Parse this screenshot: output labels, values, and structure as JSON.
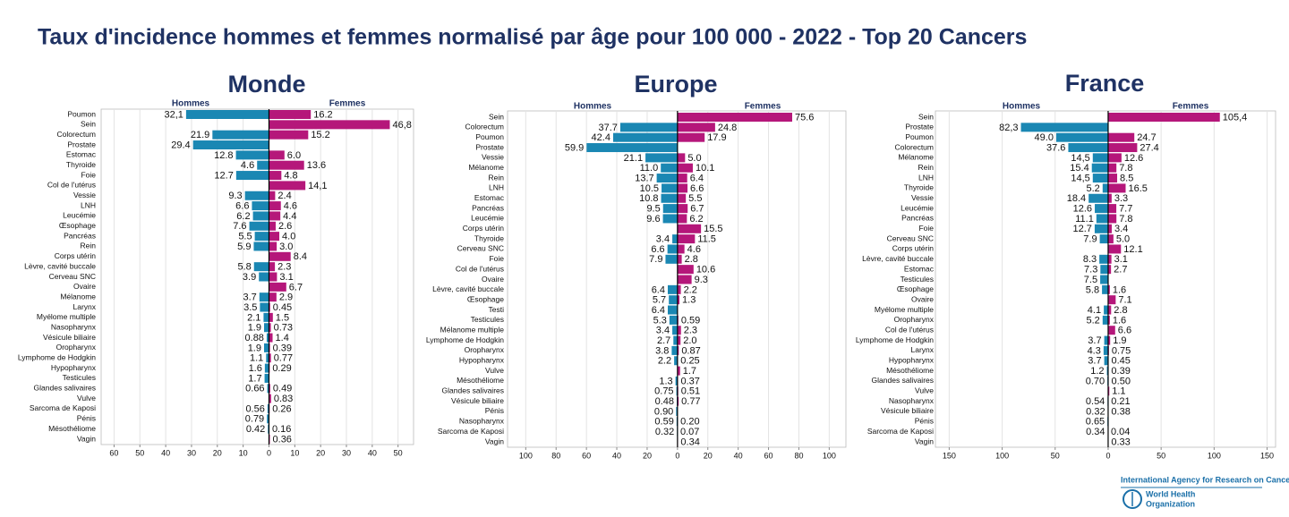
{
  "title": "Taux d'incidence hommes et femmes normalisé par âge pour 100 000 - 2022 - Top 20 Cancers",
  "footer": {
    "agency": "International Agency for Research on Cancer",
    "who_line1": "World Health",
    "who_line2": "Organization"
  },
  "chart_data": [
    {
      "type": "butterfly",
      "title": "Monde",
      "categories": [
        "Poumon",
        "Sein",
        "Colorectum",
        "Prostate",
        "Estomac",
        "Thyroide",
        "Foie",
        "Col de l'utérus",
        "Vessie",
        "LNH",
        "Leucémie",
        "Œsophage",
        "Pancréas",
        "Rein",
        "Corps utérin",
        "Lèvre, cavité buccale",
        "Cerveau SNC",
        "Ovaire",
        "Mélanome",
        "Larynx",
        "Myélome multiple",
        "Nasopharynx",
        "Vésicule biliaire",
        "Oropharynx",
        "Lymphome de Hodgkin",
        "Hypopharynx",
        "Testicules",
        "Glandes salivaires",
        "Vulve",
        "Sarcoma de Kaposi",
        "Pénis",
        "Mésothéliome",
        "Vagin"
      ],
      "series": [
        {
          "name": "Hommes",
          "color": "#1a87b3",
          "side": "left",
          "values": [
            32.1,
            null,
            21.9,
            29.4,
            12.8,
            4.6,
            12.7,
            null,
            9.3,
            6.6,
            6.2,
            7.6,
            5.5,
            5.9,
            null,
            5.8,
            3.9,
            null,
            3.7,
            3.5,
            2.1,
            1.9,
            0.88,
            1.9,
            1.1,
            1.6,
            1.7,
            0.66,
            null,
            0.56,
            0.79,
            0.42,
            null
          ],
          "value_labels": [
            "32,1",
            null,
            "21.9",
            "29.4",
            "12.8",
            "4.6",
            "12.7",
            null,
            "9.3",
            "6.6",
            "6.2",
            "7.6",
            "5.5",
            "5.9",
            null,
            "5.8",
            "3.9",
            null,
            "3.7",
            "3.5",
            "2.1",
            "1.9",
            "0.88",
            "1.9",
            "1.1",
            "1.6",
            "1.7",
            "0.66",
            null,
            "0.56",
            "0.79",
            "0.42",
            null
          ]
        },
        {
          "name": "Femmes",
          "color": "#b5177a",
          "side": "right",
          "values": [
            16.2,
            46.8,
            15.2,
            null,
            6.0,
            13.6,
            4.8,
            14.1,
            2.4,
            4.6,
            4.4,
            2.6,
            4.0,
            3.0,
            8.4,
            2.3,
            3.1,
            6.7,
            2.9,
            0.45,
            1.5,
            0.73,
            1.4,
            0.39,
            0.77,
            0.29,
            null,
            0.49,
            0.83,
            0.26,
            null,
            0.16,
            0.36
          ],
          "value_labels": [
            "16.2",
            "46,8",
            "15.2",
            null,
            "6.0",
            "13.6",
            "4.8",
            "14,1",
            "2.4",
            "4.6",
            "4.4",
            "2.6",
            "4.0",
            "3.0",
            "8.4",
            "2.3",
            "3.1",
            "6.7",
            "2.9",
            "0.45",
            "1.5",
            "0.73",
            "1.4",
            "0.39",
            "0.77",
            "0.29",
            null,
            "0.49",
            "0.83",
            "0.26",
            null,
            "0.16",
            "0.36"
          ]
        }
      ],
      "xlim": [
        -65,
        56
      ],
      "xticks": [
        {
          "value": -60,
          "label": "60"
        },
        {
          "value": -50,
          "label": "50"
        },
        {
          "value": -40,
          "label": "40"
        },
        {
          "value": -30,
          "label": "30"
        },
        {
          "value": -20,
          "label": "20"
        },
        {
          "value": -10,
          "label": "10"
        },
        0,
        10,
        20,
        30,
        40,
        50
      ],
      "grid": true
    },
    {
      "type": "butterfly",
      "title": "Europe",
      "categories": [
        "Sein",
        "Colorectum",
        "Poumon",
        "Prostate",
        "Vessie",
        "Mélanome",
        "Rein",
        "LNH",
        "Estomac",
        "Pancréas",
        "Leucémie",
        "Corps utérin",
        "Thyroide",
        "Cerveau SNC",
        "Foie",
        "Col de l'utérus",
        "Ovaire",
        "Lèvre, cavité buccale",
        "Œsophage",
        "Testi",
        "Testicules",
        "Mélanome multiple",
        "Lymphome de Hodgkin",
        "Oropharynx",
        "Hypopharynx",
        "Vulve",
        "Mésothéliome",
        "Glandes salivaires",
        "Vésicule biliaire",
        "Pénis",
        "Nasopharynx",
        "Sarcoma de Kaposi",
        "Vagin"
      ],
      "series": [
        {
          "name": "Hommes",
          "color": "#1a87b3",
          "side": "left",
          "values": [
            null,
            37.7,
            42.4,
            59.9,
            21.1,
            11.0,
            13.7,
            10.5,
            10.8,
            9.5,
            9.6,
            null,
            3.4,
            6.6,
            7.9,
            null,
            null,
            6.4,
            5.7,
            6.4,
            5.3,
            3.4,
            2.7,
            3.8,
            2.2,
            null,
            1.3,
            0.75,
            0.48,
            0.9,
            0.59,
            0.32,
            null
          ],
          "value_labels": [
            null,
            "37.7",
            "42.4",
            "59.9",
            "21.1",
            "11.0",
            "13.7",
            "10.5",
            "10.8",
            "9.5",
            "9.6",
            null,
            "3.4",
            "6.6",
            "7.9",
            null,
            null,
            "6.4",
            "5.7",
            "6.4",
            "5.3",
            "3.4",
            "2.7",
            "3.8",
            "2.2",
            null,
            "1.3",
            "0.75",
            "0.48",
            "0.90",
            "0.59",
            "0.32",
            null
          ]
        },
        {
          "name": "Femmes",
          "color": "#b5177a",
          "side": "right",
          "values": [
            75.6,
            24.8,
            17.9,
            null,
            5.0,
            10.1,
            6.4,
            6.6,
            5.5,
            6.7,
            6.2,
            15.5,
            11.5,
            4.6,
            2.8,
            10.6,
            9.3,
            2.2,
            1.3,
            null,
            0.59,
            2.3,
            2.0,
            0.87,
            0.25,
            1.7,
            0.37,
            0.51,
            0.77,
            null,
            0.2,
            0.07,
            0.34
          ],
          "value_labels": [
            "75.6",
            "24.8",
            "17.9",
            null,
            "5.0",
            "10.1",
            "6.4",
            "6.6",
            "5.5",
            "6.7",
            "6.2",
            "15.5",
            "11.5",
            "4.6",
            "2.8",
            "10.6",
            "9.3",
            "2.2",
            "1.3",
            null,
            "0.59",
            "2.3",
            "2.0",
            "0.87",
            "0.25",
            "1.7",
            "0.37",
            "0.51",
            "0.77",
            null,
            "0.20",
            "0.07",
            "0.34"
          ]
        }
      ],
      "xlim": [
        -112,
        111
      ],
      "xticks": [
        {
          "value": -100,
          "label": "100"
        },
        {
          "value": -80,
          "label": "80"
        },
        {
          "value": -60,
          "label": "60"
        },
        {
          "value": -40,
          "label": "40"
        },
        {
          "value": -20,
          "label": "20"
        },
        0,
        20,
        40,
        60,
        80,
        100
      ],
      "grid": true
    },
    {
      "type": "butterfly",
      "title": "France",
      "categories": [
        "Sein",
        "Prostate",
        "Poumon",
        "Colorectum",
        "Mélanome",
        "Rein",
        "LNH",
        "Thyroide",
        "Vessie",
        "Leucémie",
        "Pancréas",
        "Foie",
        "Cerveau SNC",
        "Corps utérin",
        "Lèvre, cavité buccale",
        "Estomac",
        "Testicules",
        "Œsophage",
        "Ovaire",
        "Myélome multiple",
        "Oropharynx",
        "Col de l'utérus",
        "Lymphome de Hodgkin",
        "Larynx",
        "Hypopharynx",
        "Mésothéliome",
        "Glandes salivaires",
        "Vulve",
        "Nasopharynx",
        "Vésicule biliaire",
        "Pénis",
        "Sarcoma de Kaposi",
        "Vagin"
      ],
      "series": [
        {
          "name": "Hommes",
          "color": "#1a87b3",
          "side": "left",
          "values": [
            null,
            82.3,
            49.0,
            37.6,
            14.5,
            15.4,
            14.5,
            5.2,
            18.4,
            12.6,
            11.1,
            12.7,
            7.9,
            null,
            8.3,
            7.3,
            7.5,
            5.8,
            null,
            4.1,
            5.2,
            null,
            3.7,
            4.3,
            3.7,
            1.2,
            0.7,
            null,
            0.54,
            0.32,
            0.65,
            0.34,
            null
          ],
          "value_labels": [
            null,
            "82,3",
            "49.0",
            "37.6",
            "14,5",
            "15.4",
            "14,5",
            "5.2",
            "18.4",
            "12.6",
            "11.1",
            "12.7",
            "7.9",
            null,
            "8.3",
            "7.3",
            "7.5",
            "5.8",
            null,
            "4.1",
            "5.2",
            null,
            "3.7",
            "4.3",
            "3.7",
            "1.2",
            "0.70",
            null,
            "0.54",
            "0.32",
            "0.65",
            "0.34",
            null
          ]
        },
        {
          "name": "Femmes",
          "color": "#b5177a",
          "side": "right",
          "values": [
            105.4,
            null,
            24.7,
            27.4,
            12.6,
            7.8,
            8.5,
            16.5,
            3.3,
            7.7,
            7.8,
            3.4,
            5.0,
            12.1,
            3.1,
            2.7,
            null,
            1.6,
            7.1,
            2.8,
            1.6,
            6.6,
            1.9,
            0.75,
            0.45,
            0.39,
            0.5,
            1.1,
            0.21,
            0.38,
            null,
            0.04,
            0.33
          ],
          "value_labels": [
            "105,4",
            null,
            "24.7",
            "27.4",
            "12.6",
            "7.8",
            "8.5",
            "16.5",
            "3.3",
            "7.7",
            "7.8",
            "3.4",
            "5.0",
            "12.1",
            "3.1",
            "2.7",
            null,
            "1.6",
            "7.1",
            "2.8",
            "1.6",
            "6.6",
            "1.9",
            "0.75",
            "0.45",
            "0.39",
            "0.50",
            "1.1",
            "0.21",
            "0.38",
            null,
            "0.04",
            "0.33"
          ]
        }
      ],
      "xlim": [
        -163,
        158
      ],
      "xticks": [
        {
          "value": -150,
          "label": "150"
        },
        {
          "value": -100,
          "label": "100"
        },
        {
          "value": -50,
          "label": "50"
        },
        0,
        50,
        100,
        150
      ],
      "grid": true
    }
  ]
}
